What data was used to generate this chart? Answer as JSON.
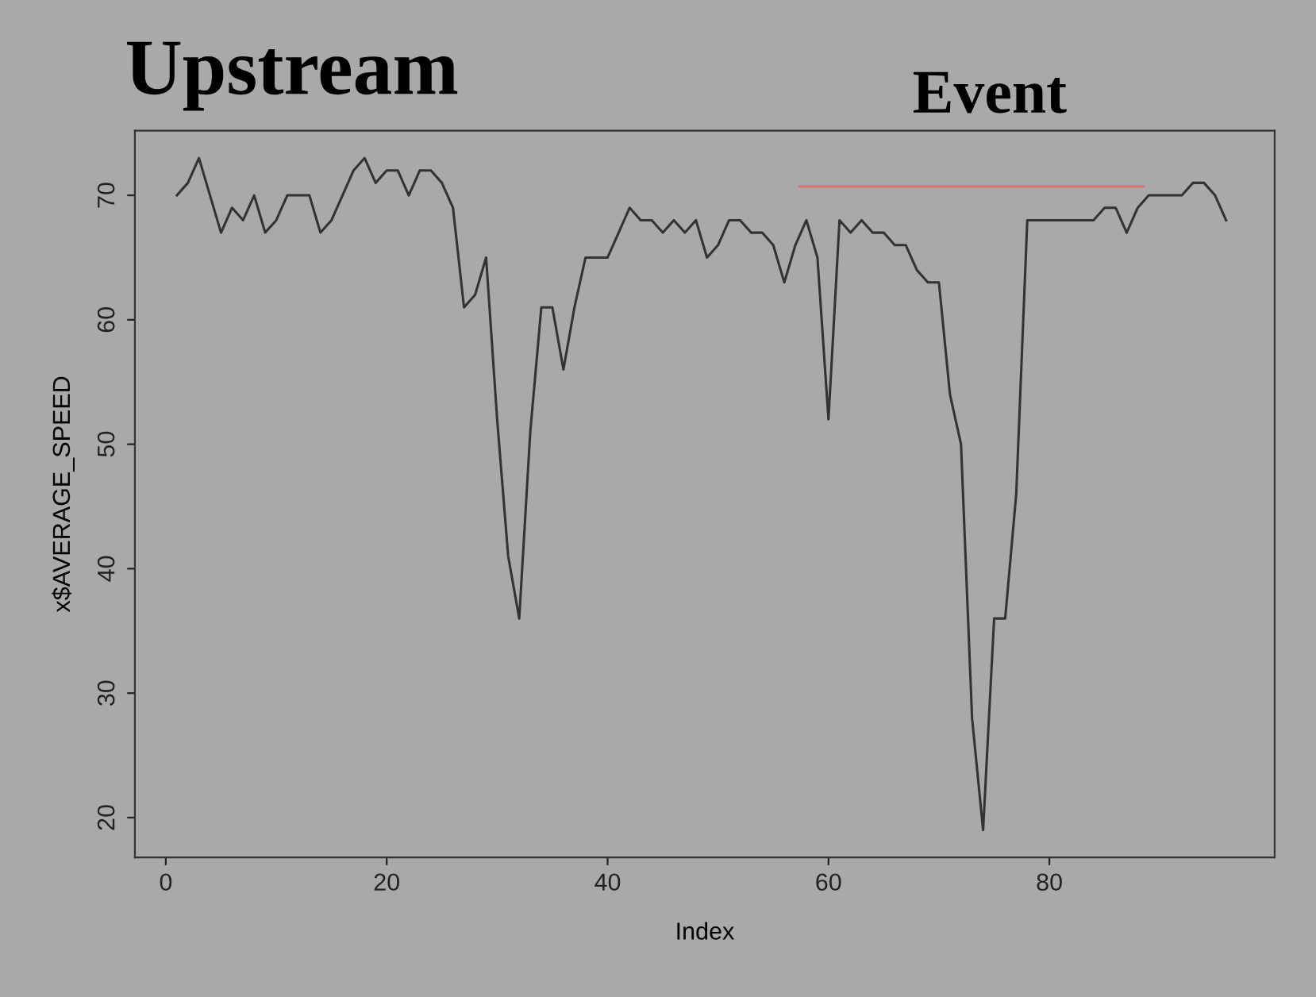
{
  "chart_data": {
    "type": "line",
    "title": "Upstream",
    "xlabel": "Index",
    "ylabel": "x$AVERAGE_SPEED",
    "x": [
      1,
      2,
      3,
      4,
      5,
      6,
      7,
      8,
      9,
      10,
      11,
      12,
      13,
      14,
      15,
      16,
      17,
      18,
      19,
      20,
      21,
      22,
      23,
      24,
      25,
      26,
      27,
      28,
      29,
      30,
      31,
      32,
      33,
      34,
      35,
      36,
      37,
      38,
      39,
      40,
      41,
      42,
      43,
      44,
      45,
      46,
      47,
      48,
      49,
      50,
      51,
      52,
      53,
      54,
      55,
      56,
      57,
      58,
      59,
      60,
      61,
      62,
      63,
      64,
      65,
      66,
      67,
      68,
      69,
      70,
      71,
      72,
      73,
      74,
      75,
      76,
      77,
      78,
      79,
      80,
      81,
      82,
      83,
      84,
      85,
      86,
      87,
      88,
      89,
      90,
      91,
      92,
      93,
      94,
      95,
      96
    ],
    "series": [
      {
        "color": "#333333",
        "values": [
          70,
          71,
          73,
          70,
          67,
          69,
          68,
          70,
          67,
          68,
          70,
          70,
          70,
          67,
          68,
          70,
          72,
          73,
          71,
          72,
          72,
          70,
          72,
          72,
          71,
          69,
          61,
          62,
          65,
          52,
          41,
          36,
          51,
          61,
          61,
          56,
          61,
          65,
          65,
          65,
          67,
          69,
          68,
          68,
          67,
          68,
          67,
          68,
          65,
          66,
          68,
          68,
          67,
          67,
          66,
          63,
          66,
          68,
          65,
          52,
          68,
          67,
          68,
          67,
          67,
          66,
          66,
          64,
          63,
          63,
          54,
          50,
          28,
          19,
          36,
          36,
          46,
          68,
          68,
          68,
          68,
          68,
          68,
          68,
          69,
          69,
          67,
          69,
          70,
          70,
          70,
          70,
          71,
          71,
          70,
          68
        ]
      },
      {
        "color": "#e07070",
        "x": [
          57.4,
          88.5
        ],
        "values": [
          70.7,
          70.7
        ]
      }
    ],
    "annotations": [
      "Event"
    ],
    "xlim": [
      -2.8,
      100.4
    ],
    "ylim": [
      16.8,
      75.2
    ],
    "xticks": [
      0,
      20,
      40,
      60,
      80
    ],
    "yticks": [
      20,
      30,
      40,
      50,
      60,
      70
    ],
    "grid": false,
    "legend": false,
    "marker": "none",
    "line_style": "solid"
  }
}
